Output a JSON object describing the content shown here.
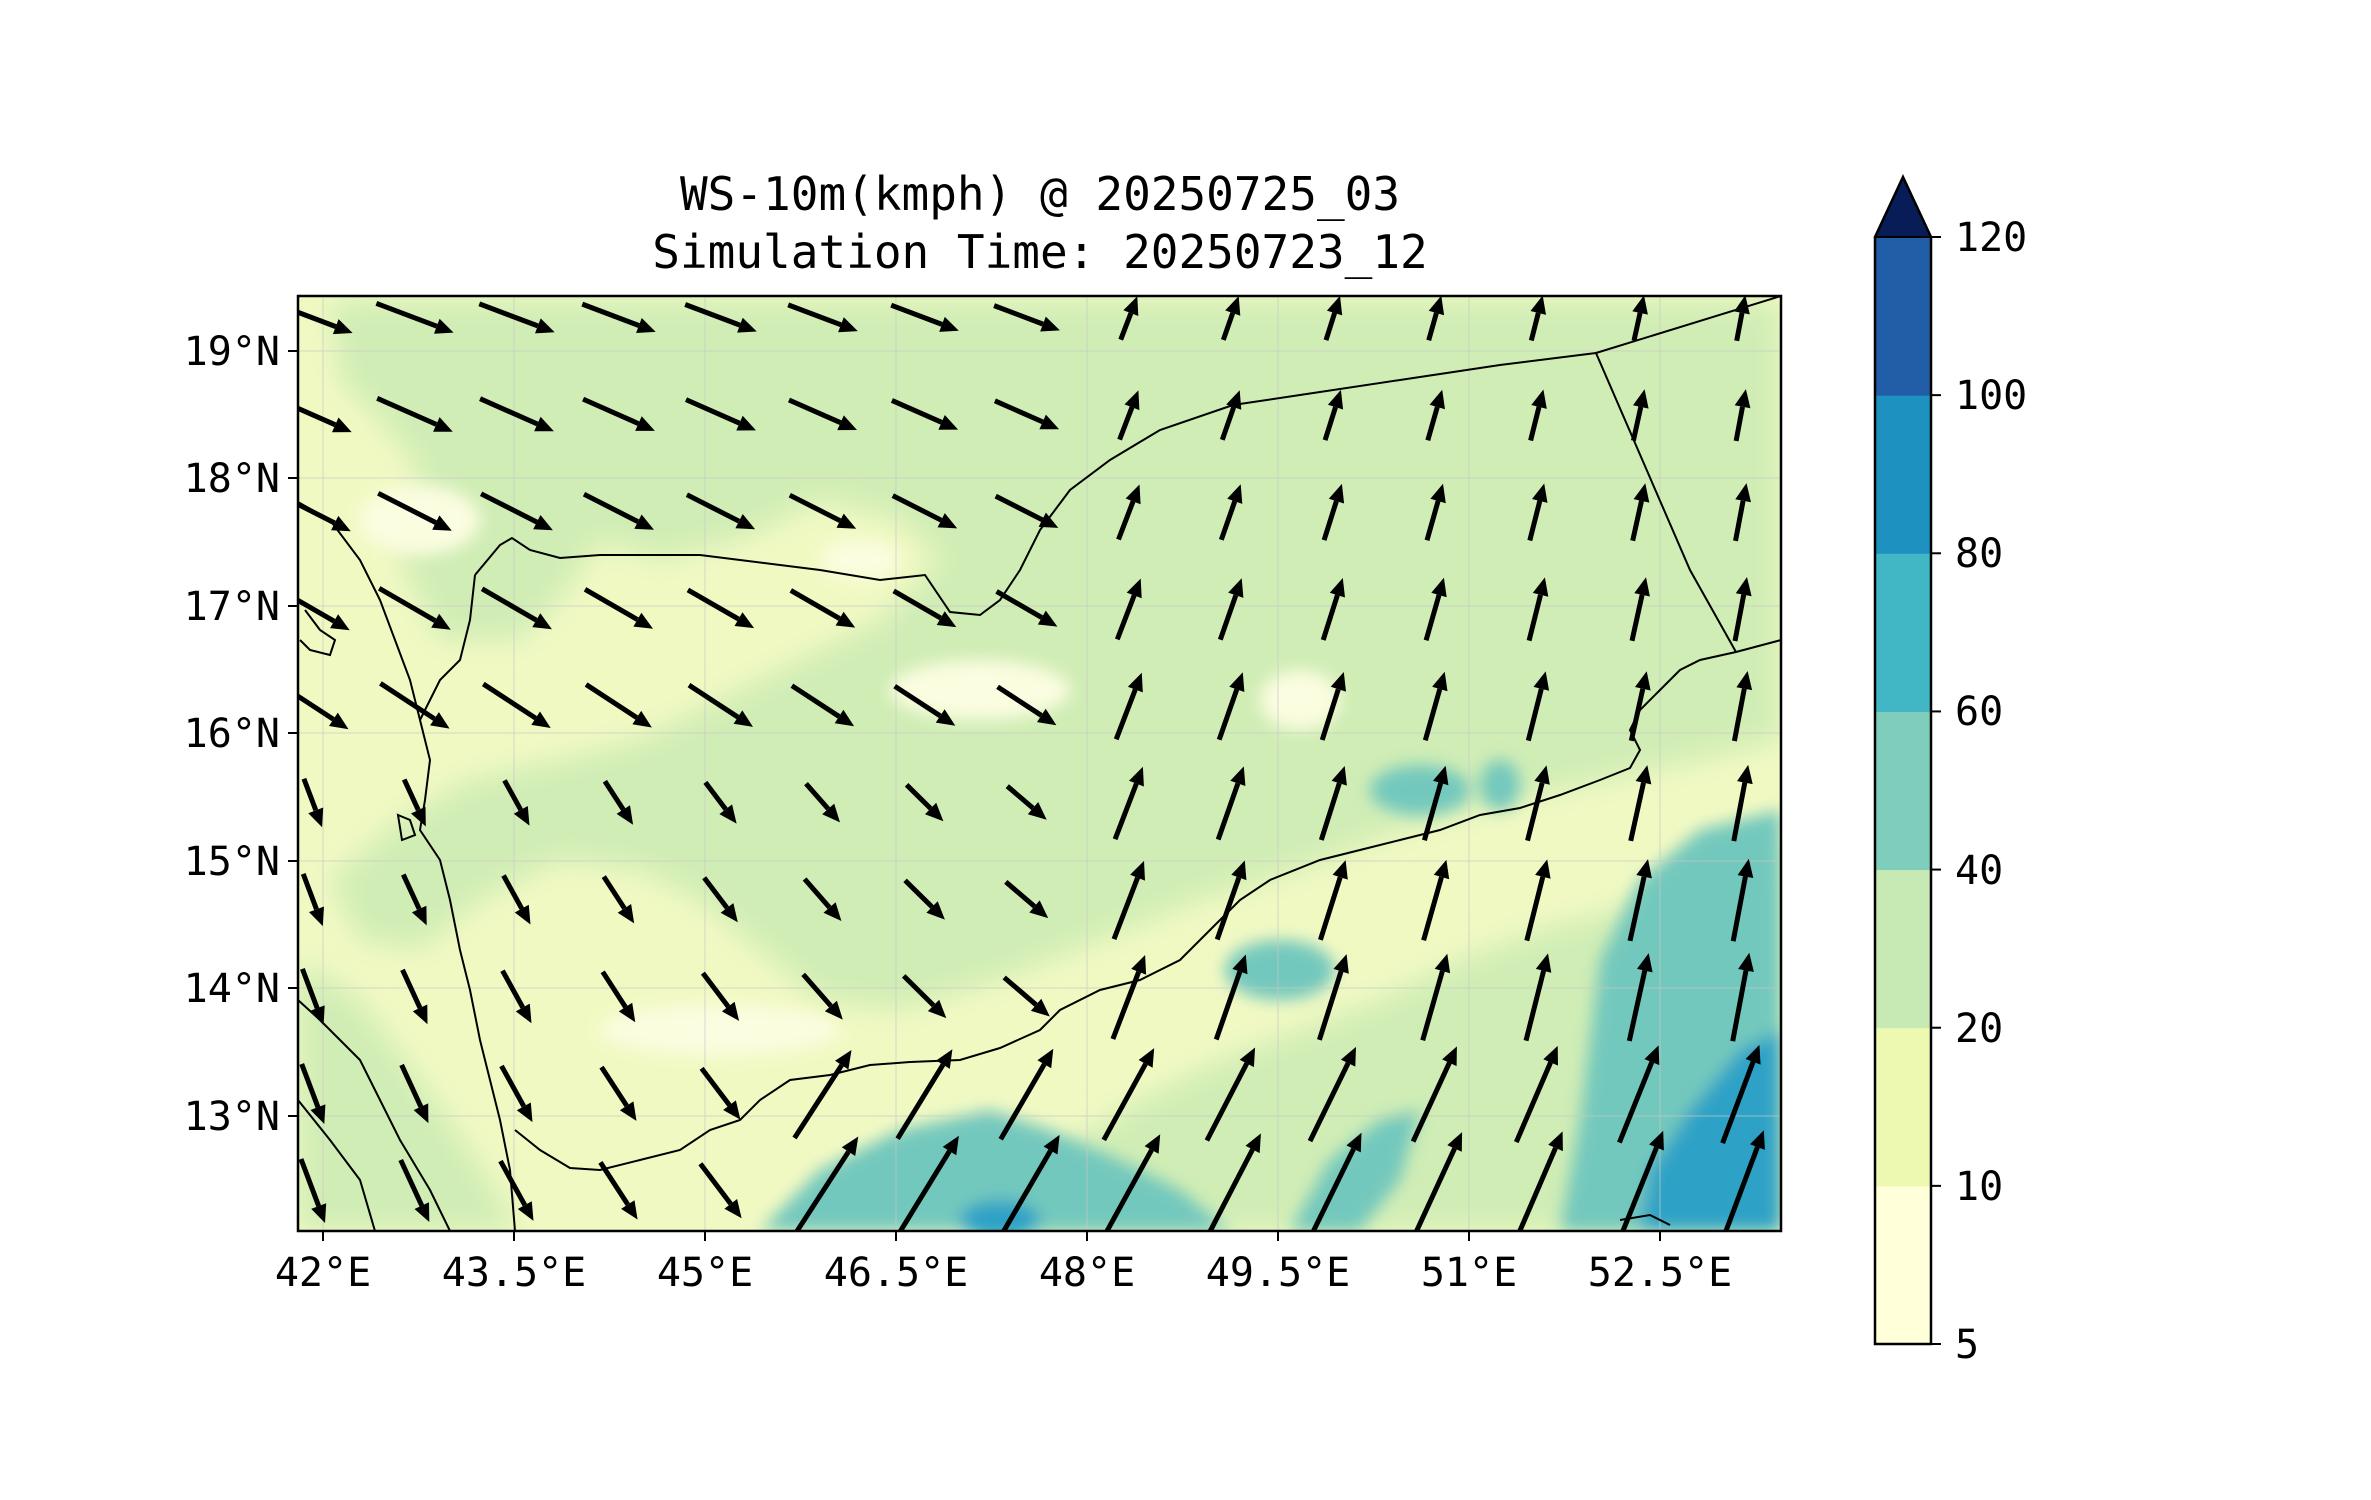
{
  "title": {
    "line1": "WS-10m(kmph) @ 20250725_03",
    "line2": "Simulation Time: 20250723_12"
  },
  "map": {
    "lon_range": [
      42.0,
      53.6
    ],
    "lat_range": [
      12.1,
      19.45
    ],
    "x_ticks": [
      "42°E",
      "43.5°E",
      "45°E",
      "46.5°E",
      "48°E",
      "49.5°E",
      "51°E",
      "52.5°E"
    ],
    "y_ticks": [
      "19°N",
      "18°N",
      "17°N",
      "16°N",
      "15°N",
      "14°N",
      "13°N"
    ],
    "field_colors": {
      "background": "#f1f9c3",
      "light": "#fbfde0",
      "mid": "#d0edb5",
      "teal": "#73c8bd",
      "blue": "#2ea2c6",
      "gridline": "#c8c8c8",
      "coastline": "#000000",
      "arrow": "#000000"
    }
  },
  "colorbar": {
    "levels": [
      "5",
      "10",
      "20",
      "40",
      "60",
      "80",
      "100",
      "120"
    ],
    "colors": [
      "#ffffd9",
      "#edf8b1",
      "#c7e9b4",
      "#7fcdbb",
      "#41b6c4",
      "#1d91c0",
      "#225ea8",
      "#253494"
    ],
    "extend_color": "#081d58",
    "extend": "max"
  }
}
